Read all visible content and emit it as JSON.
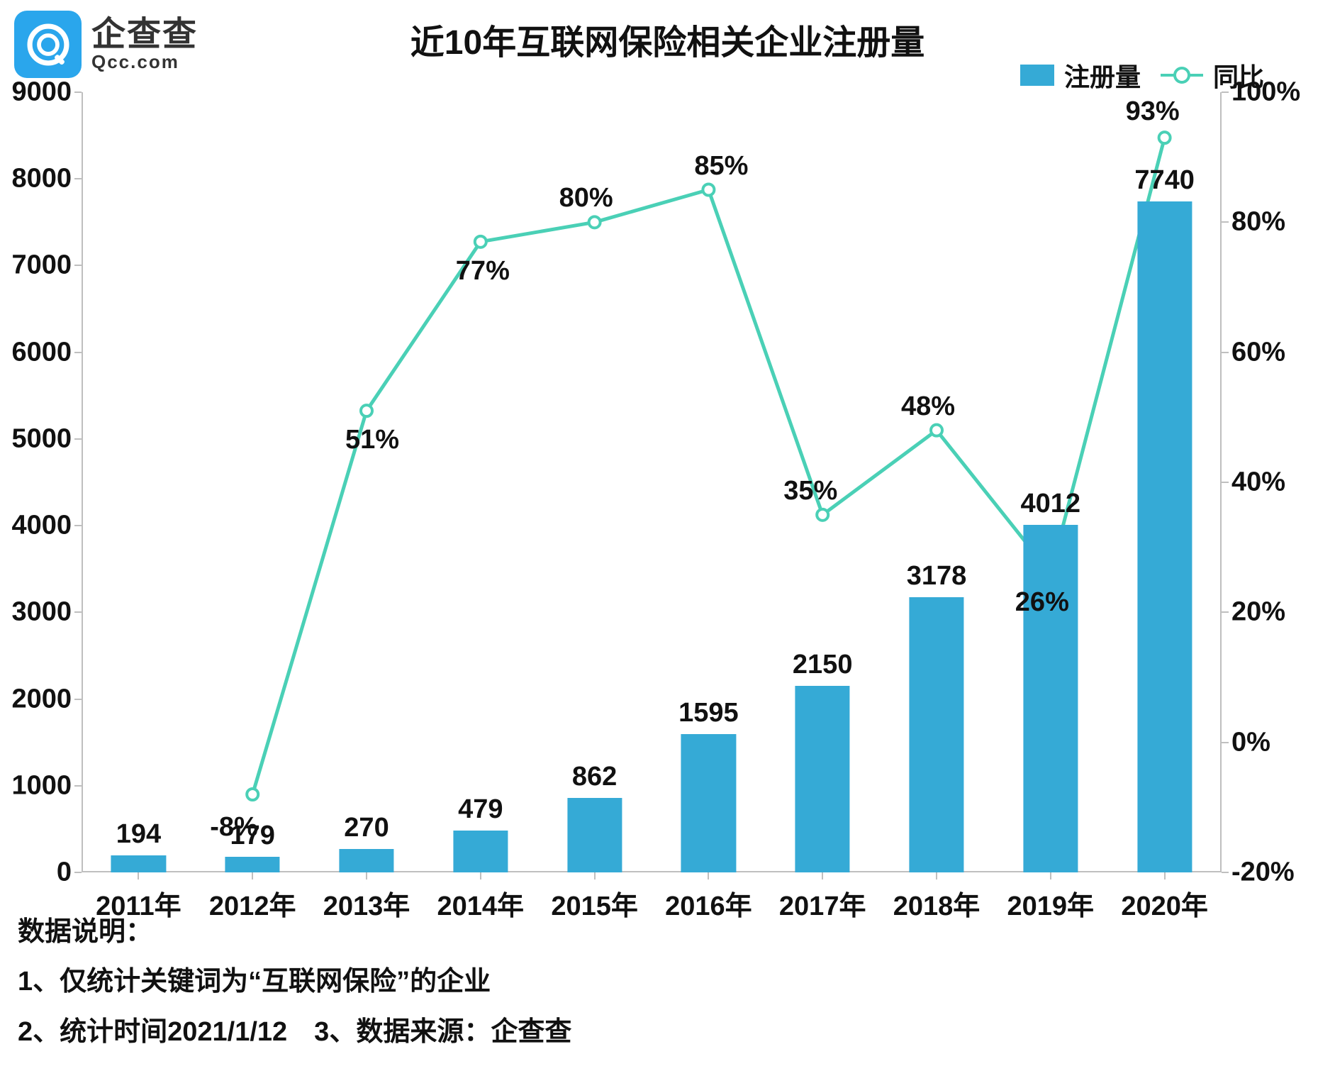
{
  "logo": {
    "brand_cn": "企查查",
    "brand_en": "Qcc.com",
    "icon_bg": "#2aa6ec",
    "icon_fg": "#ffffff"
  },
  "title": "近10年互联网保险相关企业注册量",
  "legend": {
    "bar_label": "注册量",
    "line_label": "同比",
    "bar_color": "#35aad6",
    "line_color": "#4ad0b6"
  },
  "chart": {
    "type": "bar+line",
    "categories": [
      "2011年",
      "2012年",
      "2013年",
      "2014年",
      "2015年",
      "2016年",
      "2017年",
      "2018年",
      "2019年",
      "2020年"
    ],
    "bar_series": {
      "name": "注册量",
      "values": [
        194,
        179,
        270,
        479,
        862,
        1595,
        2150,
        3178,
        4012,
        7740
      ],
      "color": "#35aad6",
      "bar_width_ratio": 0.48,
      "label_fontsize": 38,
      "label_color": "#111111"
    },
    "line_series": {
      "name": "同比",
      "values": [
        null,
        -8,
        51,
        77,
        80,
        85,
        35,
        48,
        26,
        93
      ],
      "labels": [
        "",
        "-8%",
        "51%",
        "77%",
        "80%",
        "85%",
        "35%",
        "48%",
        "26%",
        "93%"
      ],
      "color": "#4ad0b6",
      "line_width": 5,
      "marker_radius": 8,
      "marker_fill": "#ffffff",
      "marker_ring": 4,
      "label_fontsize": 38
    },
    "y_left": {
      "min": 0,
      "max": 9000,
      "step": 1000,
      "label_fontsize": 38
    },
    "y_right": {
      "min": -20,
      "max": 100,
      "step": 20,
      "suffix": "%",
      "label_fontsize": 38
    },
    "axis_color": "#bfbfbf",
    "background_color": "#ffffff",
    "title_fontsize": 48,
    "title_color": "#111111"
  },
  "notes": {
    "heading": "数据说明：",
    "line1": "1、仅统计关键词为“互联网保险”的企业",
    "line2": "2、统计时间2021/1/12　3、数据来源：企查查"
  }
}
